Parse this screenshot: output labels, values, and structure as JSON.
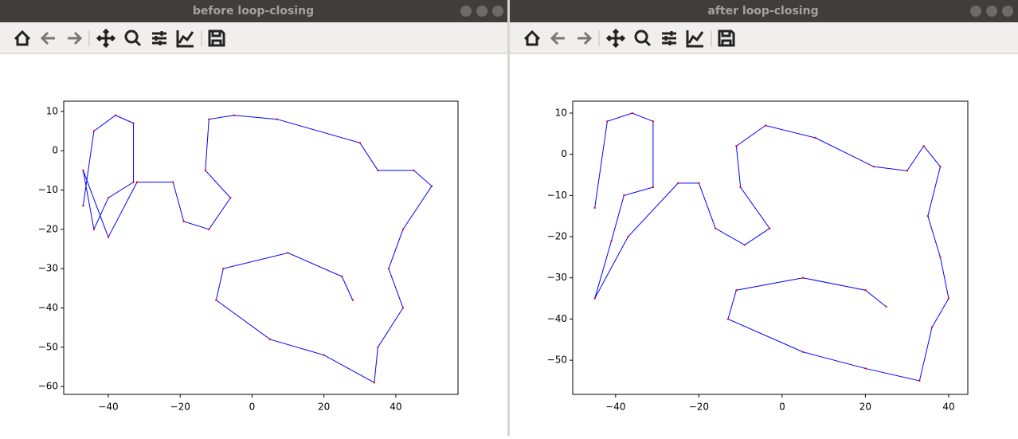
{
  "windows": [
    {
      "title": "before loop-closing"
    },
    {
      "title": "after loop-closing"
    }
  ],
  "chart_data": [
    {
      "type": "line",
      "xlim": [
        -52.4,
        57.3
      ],
      "ylim": [
        -62.0,
        12.6
      ],
      "xticks": [
        {
          "value": -40,
          "label": "−40"
        },
        {
          "value": -20,
          "label": "−20"
        },
        0,
        20,
        40
      ],
      "yticks": [
        10,
        0,
        {
          "value": -10,
          "label": "−10"
        },
        {
          "value": -20,
          "label": "−20"
        },
        {
          "value": -30,
          "label": "−30"
        },
        {
          "value": -40,
          "label": "−40"
        },
        {
          "value": -50,
          "label": "−50"
        },
        {
          "value": -60,
          "label": "−60"
        }
      ],
      "series": [
        {
          "color": "#0000ff",
          "marker_color": "#ff0000",
          "x": [
            -47,
            -44,
            -38,
            -33,
            -33,
            -40,
            -44,
            -47,
            -40,
            -32,
            -22,
            -19,
            -12,
            -6,
            -13,
            -12,
            -5,
            7,
            30,
            35,
            45,
            50,
            42,
            38,
            42,
            35,
            34,
            20,
            5,
            -10,
            -8,
            10,
            25,
            28
          ],
          "y": [
            -14,
            5,
            9,
            7,
            -8,
            -12,
            -20,
            -5,
            -22,
            -8,
            -8,
            -18,
            -20,
            -12,
            -5,
            8,
            9,
            8,
            2,
            -5,
            -5,
            -9,
            -20,
            -30,
            -40,
            -50,
            -59,
            -52,
            -48,
            -38,
            -30,
            -26,
            -32,
            -38
          ]
        }
      ]
    },
    {
      "type": "line",
      "xlim": [
        -50.3,
        44.6
      ],
      "ylim": [
        -58.3,
        12.9
      ],
      "xticks": [
        {
          "value": -40,
          "label": "−40"
        },
        {
          "value": -20,
          "label": "−20"
        },
        0,
        20,
        40
      ],
      "yticks": [
        10,
        0,
        {
          "value": -10,
          "label": "−10"
        },
        {
          "value": -20,
          "label": "−20"
        },
        {
          "value": -30,
          "label": "−30"
        },
        {
          "value": -40,
          "label": "−40"
        },
        {
          "value": -50,
          "label": "−50"
        }
      ],
      "series": [
        {
          "color": "#0000ff",
          "marker_color": "#ff0000",
          "x": [
            -45,
            -42,
            -36,
            -31,
            -31,
            -38,
            -41,
            -45,
            -37,
            -25,
            -20,
            -16,
            -9,
            -3,
            -10,
            -11,
            -4,
            8,
            22,
            30,
            34,
            38,
            35,
            38,
            40,
            36,
            33,
            20,
            5,
            -13,
            -11,
            5,
            20,
            25
          ],
          "y": [
            -13,
            8,
            10,
            8,
            -8,
            -10,
            -21,
            -35,
            -20,
            -7,
            -7,
            -18,
            -22,
            -18,
            -8,
            2,
            7,
            4,
            -3,
            -4,
            2,
            -3,
            -15,
            -25,
            -35,
            -42,
            -55,
            -52,
            -48,
            -40,
            -33,
            -30,
            -33,
            -37
          ]
        }
      ]
    }
  ]
}
